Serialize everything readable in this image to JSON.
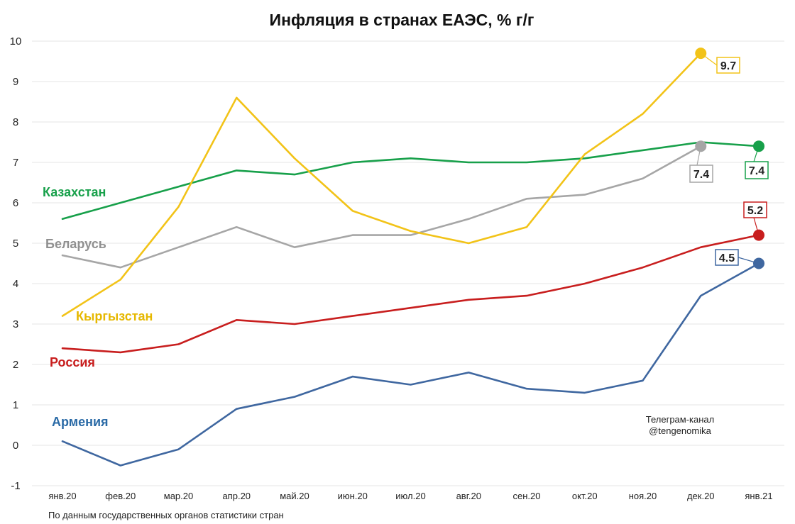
{
  "chart_data": {
    "type": "line",
    "title": "Инфляция в странах ЕАЭС, % г/г",
    "categories": [
      "янв.20",
      "фев.20",
      "мар.20",
      "апр.20",
      "май.20",
      "июн.20",
      "июл.20",
      "авг.20",
      "сен.20",
      "окт.20",
      "ноя.20",
      "дек.20",
      "янв.21"
    ],
    "ylim": [
      -1,
      10
    ],
    "yticks": [
      -1,
      0,
      1,
      2,
      3,
      4,
      5,
      6,
      7,
      8,
      9,
      10
    ],
    "grid": true,
    "series": [
      {
        "name": "Казахстан",
        "color": "#17a04a",
        "values": [
          5.6,
          6.0,
          6.4,
          6.8,
          6.7,
          7.0,
          7.1,
          7.0,
          7.0,
          7.1,
          7.3,
          7.5,
          7.4
        ],
        "end_label": "7.4"
      },
      {
        "name": "Беларусь",
        "color": "#a6a6a6",
        "values": [
          4.7,
          4.4,
          4.9,
          5.4,
          4.9,
          5.2,
          5.2,
          5.6,
          6.1,
          6.2,
          6.6,
          7.4,
          null
        ],
        "end_label": "7.4"
      },
      {
        "name": "Кыргызстан",
        "color": "#f2c318",
        "values": [
          3.2,
          4.1,
          5.9,
          8.6,
          7.1,
          5.8,
          5.3,
          5.0,
          5.4,
          7.2,
          8.2,
          9.7,
          null
        ],
        "end_label": "9.7"
      },
      {
        "name": "Россия",
        "color": "#c81e1e",
        "values": [
          2.4,
          2.3,
          2.5,
          3.1,
          3.0,
          3.2,
          3.4,
          3.6,
          3.7,
          4.0,
          4.4,
          4.9,
          5.2
        ],
        "end_label": "5.2"
      },
      {
        "name": "Армения",
        "color": "#3f67a0",
        "values": [
          0.1,
          -0.5,
          -0.1,
          0.9,
          1.2,
          1.7,
          1.5,
          1.8,
          1.4,
          1.3,
          1.6,
          3.7,
          4.5
        ],
        "end_label": "4.5"
      }
    ],
    "credit": [
      "Телеграм-канал",
      "@tengenomika"
    ],
    "footnote": "По данным государственных органов статистики стран"
  }
}
